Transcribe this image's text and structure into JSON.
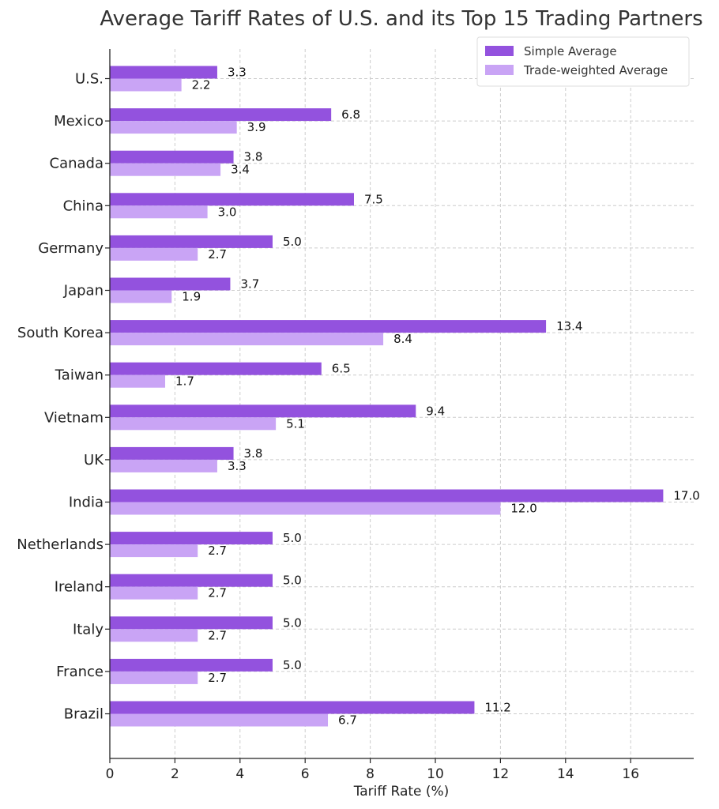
{
  "chart_data": {
    "type": "bar",
    "orientation": "horizontal",
    "title": "Average Tariff Rates of U.S. and its Top 15 Trading Partners",
    "xlabel": "Tariff Rate (%)",
    "ylabel": "",
    "xlim": [
      0,
      18
    ],
    "xticks": [
      0,
      2,
      4,
      6,
      8,
      10,
      12,
      14,
      16
    ],
    "grid": true,
    "legend_position": "top-right",
    "categories": [
      "U.S.",
      "Mexico",
      "Canada",
      "China",
      "Germany",
      "Japan",
      "South Korea",
      "Taiwan",
      "Vietnam",
      "UK",
      "India",
      "Netherlands",
      "Ireland",
      "Italy",
      "France",
      "Brazil"
    ],
    "series": [
      {
        "name": "Simple Average",
        "color": "#9352de",
        "values": [
          3.3,
          6.8,
          3.8,
          7.5,
          5.0,
          3.7,
          13.4,
          6.5,
          9.4,
          3.8,
          17.0,
          5.0,
          5.0,
          5.0,
          5.0,
          11.2
        ],
        "labels": [
          "3.3",
          "6.8",
          "3.8",
          "7.5",
          "5.0",
          "3.7",
          "13.4",
          "6.5",
          "9.4",
          "3.8",
          "17.0",
          "5.0",
          "5.0",
          "5.0",
          "5.0",
          "11.2"
        ]
      },
      {
        "name": "Trade-weighted Average",
        "color": "#c9a4f5",
        "values": [
          2.2,
          3.9,
          3.4,
          3.0,
          2.7,
          1.9,
          8.4,
          1.7,
          5.1,
          3.3,
          12.0,
          2.7,
          2.7,
          2.7,
          2.7,
          6.7
        ],
        "labels": [
          "2.2",
          "3.9",
          "3.4",
          "3.0",
          "2.7",
          "1.9",
          "8.4",
          "1.7",
          "5.1",
          "3.3",
          "12.0",
          "2.7",
          "2.7",
          "2.7",
          "2.7",
          "6.7"
        ]
      }
    ]
  }
}
